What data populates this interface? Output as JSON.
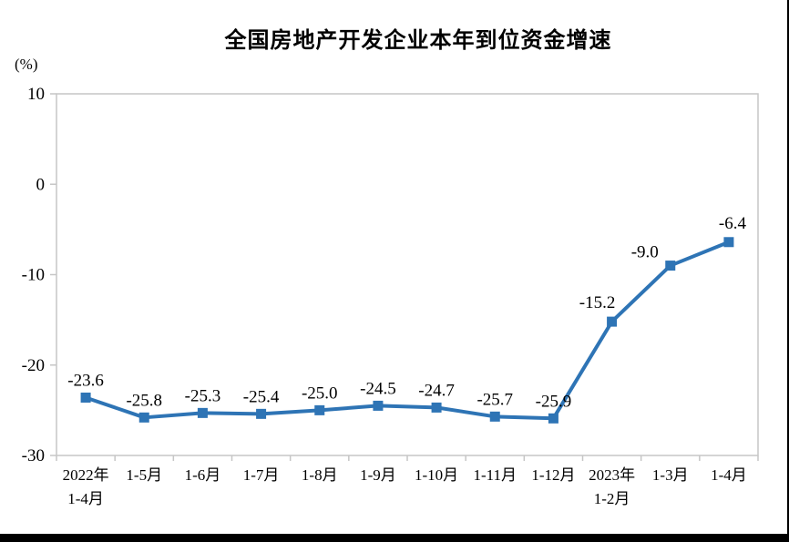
{
  "chart_data": {
    "type": "line",
    "title": "全国房地产开发企业本年到位资金增速",
    "ylabel": "(%)",
    "xlabel": "",
    "categories": [
      [
        "2022年",
        "1-4月"
      ],
      [
        "1-5月"
      ],
      [
        "1-6月"
      ],
      [
        "1-7月"
      ],
      [
        "1-8月"
      ],
      [
        "1-9月"
      ],
      [
        "1-10月"
      ],
      [
        "1-11月"
      ],
      [
        "1-12月"
      ],
      [
        "2023年",
        "1-2月"
      ],
      [
        "1-3月"
      ],
      [
        "1-4月"
      ]
    ],
    "values": [
      -23.6,
      -25.8,
      -25.3,
      -25.4,
      -25.0,
      -24.5,
      -24.7,
      -25.7,
      -25.9,
      -15.2,
      -9.0,
      -6.4
    ],
    "ylim": [
      -30,
      10
    ],
    "yticks": [
      10,
      0,
      -10,
      -20,
      -30
    ],
    "grid": false,
    "legend": "none",
    "line_color": "#2E74B5",
    "axis_color": "#C6C6C6",
    "text_color": "#000000",
    "marker": "square",
    "label_decimals": 1,
    "label_offsets": {
      "9": [
        -16,
        -2
      ],
      "10": [
        -28,
        4
      ],
      "11": [
        4,
        -2
      ]
    }
  }
}
